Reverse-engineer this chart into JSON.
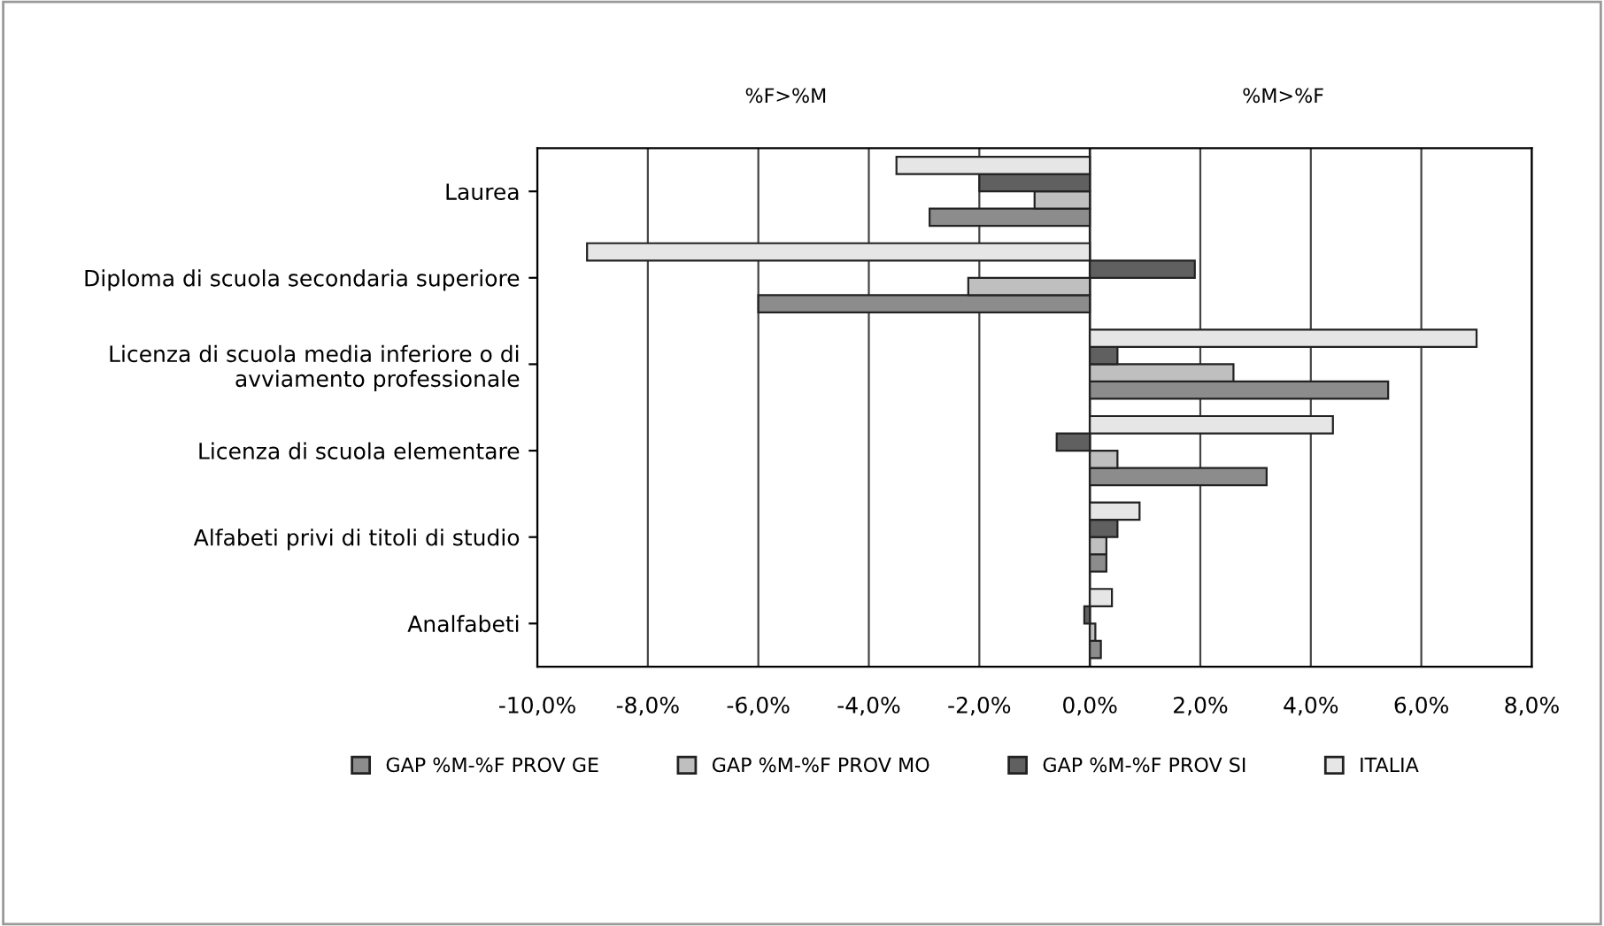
{
  "chart_data": {
    "type": "bar",
    "orientation": "horizontal",
    "categories": [
      "Laurea",
      "Diploma di scuola secondaria superiore",
      "Licenza di scuola media inferiore o di avviamento professionale",
      "Licenza di scuola elementare",
      "Alfabeti privi di titoli di studio",
      "Analfabeti"
    ],
    "series": [
      {
        "name": "GAP %M-%F PROV GE",
        "color": "#8c8c8c",
        "values": [
          -2.9,
          -6.0,
          5.4,
          3.2,
          0.3,
          0.2
        ]
      },
      {
        "name": "GAP %M-%F PROV MO",
        "color": "#bfbfbf",
        "values": [
          -1.0,
          -2.2,
          2.6,
          0.5,
          0.3,
          0.1
        ]
      },
      {
        "name": "GAP %M-%F PROV SI",
        "color": "#606060",
        "values": [
          -2.0,
          1.9,
          0.5,
          -0.6,
          0.5,
          -0.1
        ]
      },
      {
        "name": "ITALIA",
        "color": "#e6e6e6",
        "values": [
          -3.5,
          -9.1,
          7.0,
          4.4,
          0.9,
          0.4
        ]
      }
    ],
    "xlim": [
      -10,
      8
    ],
    "xticks": [
      {
        "value": -10,
        "label": "-10,0%"
      },
      {
        "value": -8,
        "label": "-8,0%"
      },
      {
        "value": -6,
        "label": "-6,0%"
      },
      {
        "value": -4,
        "label": "-4,0%"
      },
      {
        "value": -2,
        "label": "-2,0%"
      },
      {
        "value": 0,
        "label": "0,0%"
      },
      {
        "value": 2,
        "label": "2,0%"
      },
      {
        "value": 4,
        "label": "4,0%"
      },
      {
        "value": 6,
        "label": "6,0%"
      },
      {
        "value": 8,
        "label": "8,0%"
      }
    ],
    "annotations": [
      "%F>%M",
      "%M>%F"
    ],
    "grid": "x",
    "legend": "bottom"
  }
}
